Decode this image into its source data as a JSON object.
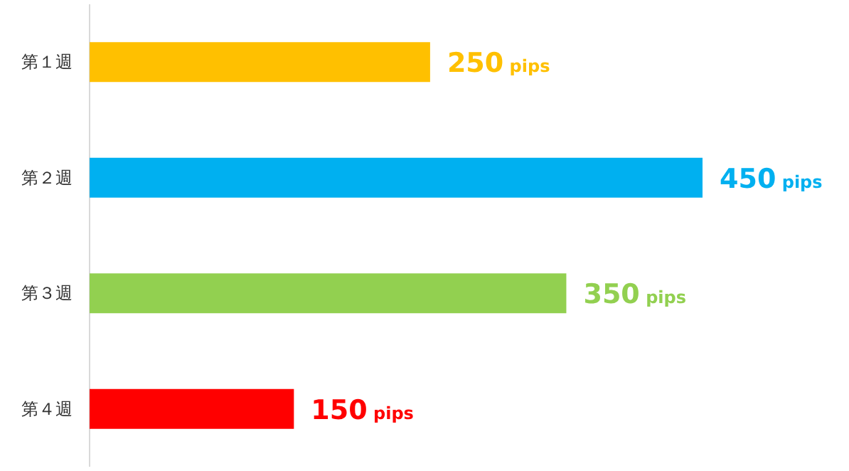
{
  "chart_data": {
    "type": "bar",
    "orientation": "horizontal",
    "categories": [
      "第１週",
      "第２週",
      "第３週",
      "第４週"
    ],
    "values": [
      250,
      450,
      350,
      150
    ],
    "colors": [
      "#ffc000",
      "#00b0f0",
      "#92d050",
      "#ff0000"
    ],
    "value_labels": [
      "250 pips",
      "450 pips",
      "350 pips",
      "150 pips"
    ]
  }
}
